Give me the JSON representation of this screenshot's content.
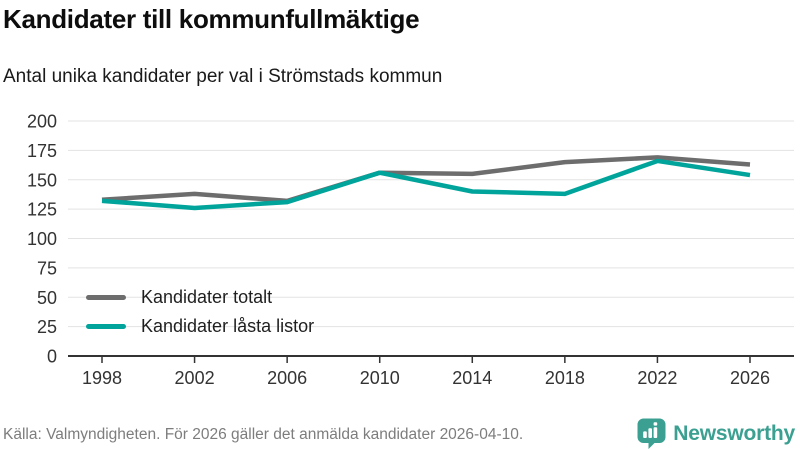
{
  "header": {
    "title": "Kandidater till kommunfullmäktige",
    "subtitle": "Antal unika kandidater per val i Strömstads kommun"
  },
  "chart_data": {
    "type": "line",
    "x": [
      "1998",
      "2002",
      "2006",
      "2010",
      "2014",
      "2018",
      "2022",
      "2026"
    ],
    "series": [
      {
        "name": "Kandidater totalt",
        "color": "#6d6d6d",
        "values": [
          133,
          138,
          132,
          156,
          155,
          165,
          169,
          163
        ]
      },
      {
        "name": "Kandidater låsta listor",
        "color": "#00a49b",
        "values": [
          132,
          126,
          131,
          156,
          140,
          138,
          166,
          154
        ]
      }
    ],
    "ylim": [
      0,
      200
    ],
    "yticks": [
      0,
      25,
      50,
      75,
      100,
      125,
      150,
      175,
      200
    ],
    "grid": true,
    "legend_position": "inside-lower-left",
    "gridline_color": "#e3e3e3",
    "axis_color": "#333333",
    "tick_label_color": "#333333",
    "line_width": 4.5
  },
  "legend": {
    "items": [
      {
        "label": "Kandidater totalt",
        "color": "#6d6d6d"
      },
      {
        "label": "Kandidater låsta listor",
        "color": "#00a49b"
      }
    ]
  },
  "footer": {
    "source": "Källa: Valmyndigheten. För 2026 gäller det anmälda kandidater 2026-04-10.",
    "brand": "Newsworthy",
    "brand_color": "#3ba091"
  }
}
